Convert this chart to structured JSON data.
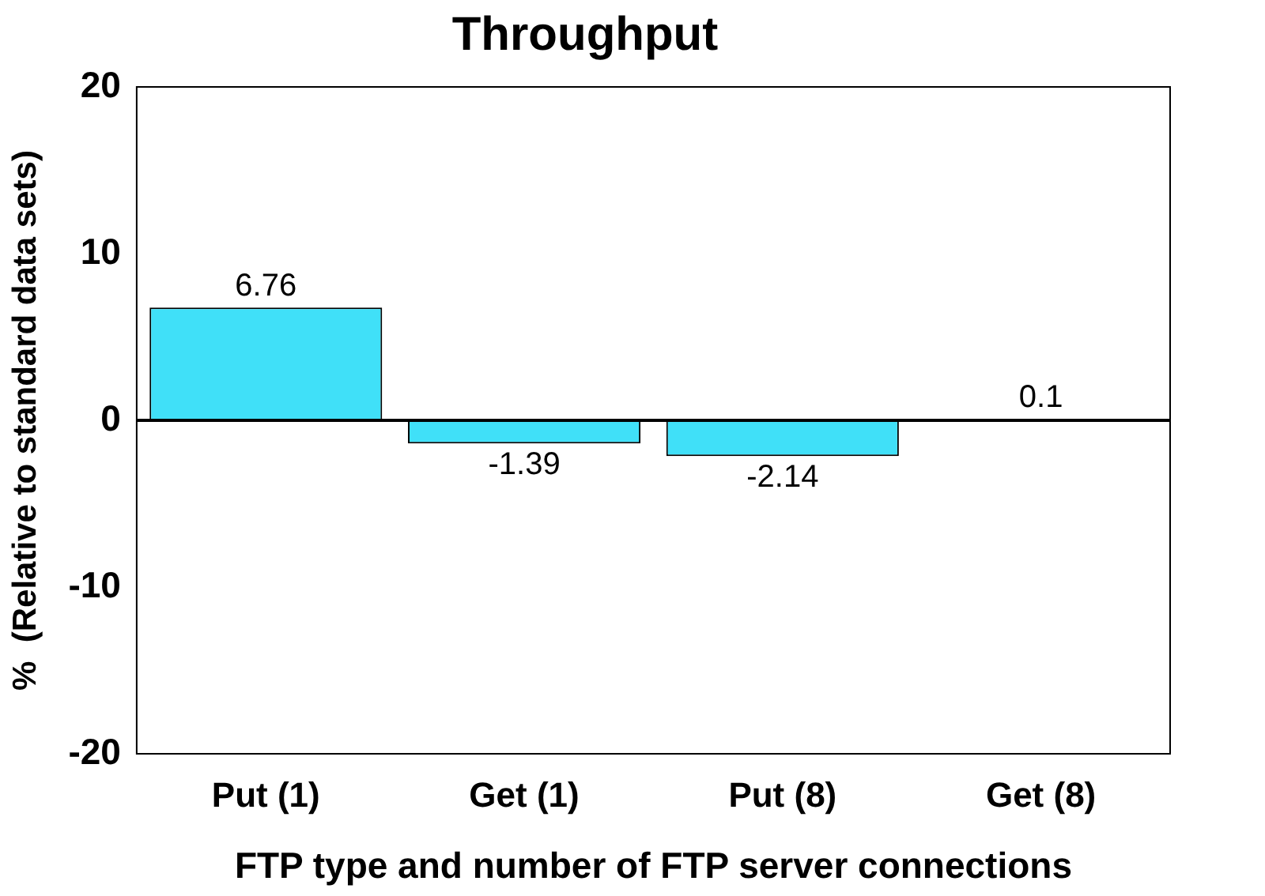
{
  "chart_data": {
    "type": "bar",
    "title": "Throughput",
    "categories": [
      "Put (1)",
      "Get (1)",
      "Put (8)",
      "Get (8)"
    ],
    "values": [
      6.76,
      -1.39,
      -2.14,
      0.1
    ],
    "color": "#40e0f8",
    "xlabel": "FTP type and number of FTP server connections",
    "ylabel": "%  (Relative to standard data sets)",
    "ylim": [
      -20,
      20
    ],
    "yticks": [
      -20,
      -10,
      0,
      10,
      20
    ],
    "grid": false,
    "data_labels": true,
    "ref_lines": [
      {
        "axis": "y",
        "value": 0,
        "color": "#000000"
      }
    ]
  }
}
